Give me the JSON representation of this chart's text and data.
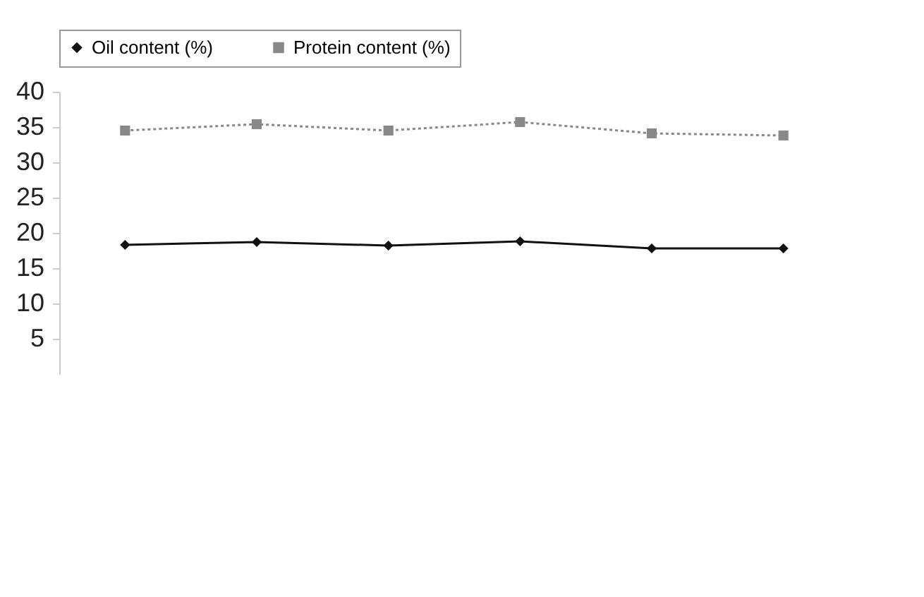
{
  "chart_data": {
    "type": "line",
    "categories": [
      null,
      null,
      null,
      null,
      null,
      null
    ],
    "series": [
      {
        "name": "Oil content (%)",
        "color": "#111111",
        "values": [
          18.3,
          18.7,
          18.2,
          18.8,
          17.8,
          17.8
        ],
        "marker": "diamond",
        "line_style": "solid"
      },
      {
        "name": "Protein content (%)",
        "color": "#888888",
        "values": [
          34.5,
          35.4,
          34.5,
          35.7,
          34.1,
          33.8
        ],
        "marker": "square",
        "line_style": "dotted"
      }
    ],
    "ylim": [
      0,
      40
    ],
    "yticks": [
      5,
      10,
      15,
      20,
      25,
      30,
      35,
      40
    ],
    "grid": false,
    "legend": "top",
    "tick_labels": "y"
  }
}
